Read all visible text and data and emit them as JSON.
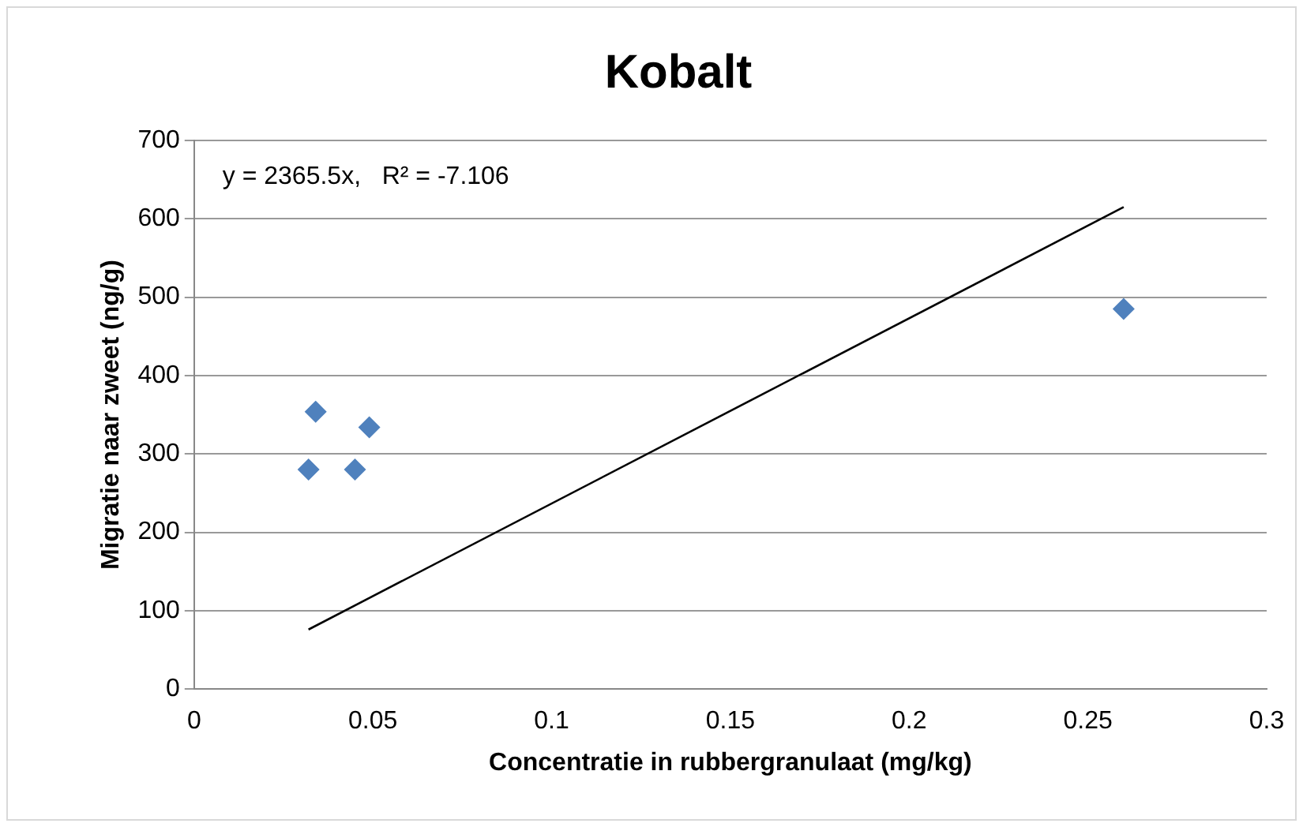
{
  "chart_data": {
    "type": "scatter",
    "title": "Kobalt",
    "xlabel": "Concentratie in rubbergranulaat (mg/kg)",
    "ylabel": "Migratie naar zweet (ng/g)",
    "annotations": [
      "y = 2365.5x,   R² = -7.106"
    ],
    "series": [
      {
        "color": "#4f81bd",
        "marker": "diamond",
        "x": [
          0.032,
          0.034,
          0.045,
          0.049,
          0.26
        ],
        "values": [
          280,
          354,
          280,
          334,
          485
        ]
      },
      {
        "type": "line",
        "color": "#000000",
        "marker": "none",
        "x": [
          0.032,
          0.26
        ],
        "values": [
          76,
          615
        ]
      }
    ],
    "xlim": [
      0,
      0.3
    ],
    "xticks": [
      0,
      0.05,
      0.1,
      0.15,
      0.2,
      0.25,
      0.3
    ],
    "ylim": [
      0,
      700
    ],
    "yticks": [
      0,
      100,
      200,
      300,
      400,
      500,
      600,
      700
    ],
    "grid": "y",
    "legend": false
  }
}
